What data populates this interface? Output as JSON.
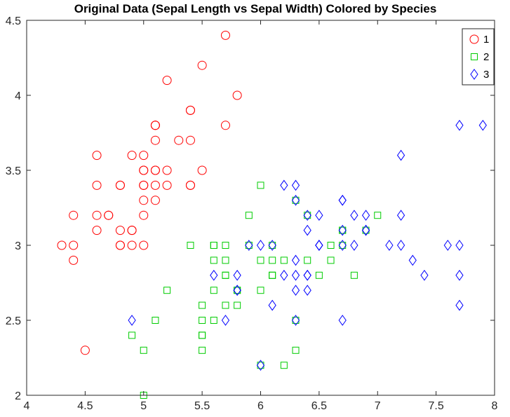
{
  "chart_data": {
    "type": "scatter",
    "title": "Original Data (Sepal Length vs Sepal Width) Colored by Species",
    "xlabel": "",
    "ylabel": "",
    "xlim": [
      4,
      8
    ],
    "ylim": [
      2,
      4.5
    ],
    "xticks": [
      "4",
      "4.5",
      "5",
      "5.5",
      "6",
      "6.5",
      "7",
      "7.5",
      "8"
    ],
    "yticks": [
      "2",
      "2.5",
      "3",
      "3.5",
      "4",
      "4.5"
    ],
    "grid": false,
    "legend_position": "top-right",
    "series": [
      {
        "name": "1",
        "marker": "circle",
        "color": "#ff0000",
        "points": [
          [
            5.1,
            3.5
          ],
          [
            4.9,
            3.0
          ],
          [
            4.7,
            3.2
          ],
          [
            4.6,
            3.1
          ],
          [
            5.0,
            3.6
          ],
          [
            5.4,
            3.9
          ],
          [
            4.6,
            3.4
          ],
          [
            5.0,
            3.4
          ],
          [
            4.4,
            2.9
          ],
          [
            4.9,
            3.1
          ],
          [
            5.4,
            3.7
          ],
          [
            4.8,
            3.4
          ],
          [
            4.8,
            3.0
          ],
          [
            4.3,
            3.0
          ],
          [
            5.8,
            4.0
          ],
          [
            5.7,
            4.4
          ],
          [
            5.4,
            3.9
          ],
          [
            5.1,
            3.5
          ],
          [
            5.7,
            3.8
          ],
          [
            5.1,
            3.8
          ],
          [
            5.4,
            3.4
          ],
          [
            5.1,
            3.7
          ],
          [
            4.6,
            3.6
          ],
          [
            5.1,
            3.3
          ],
          [
            4.8,
            3.4
          ],
          [
            5.0,
            3.0
          ],
          [
            5.0,
            3.4
          ],
          [
            5.2,
            3.5
          ],
          [
            5.2,
            3.4
          ],
          [
            4.7,
            3.2
          ],
          [
            4.8,
            3.1
          ],
          [
            5.4,
            3.4
          ],
          [
            5.2,
            4.1
          ],
          [
            5.5,
            4.2
          ],
          [
            4.9,
            3.1
          ],
          [
            5.0,
            3.2
          ],
          [
            5.5,
            3.5
          ],
          [
            4.9,
            3.6
          ],
          [
            4.4,
            3.0
          ],
          [
            5.1,
            3.4
          ],
          [
            5.0,
            3.5
          ],
          [
            4.5,
            2.3
          ],
          [
            4.4,
            3.2
          ],
          [
            5.0,
            3.5
          ],
          [
            5.1,
            3.8
          ],
          [
            4.8,
            3.0
          ],
          [
            5.1,
            3.8
          ],
          [
            4.6,
            3.2
          ],
          [
            5.3,
            3.7
          ],
          [
            5.0,
            3.3
          ]
        ]
      },
      {
        "name": "2",
        "marker": "square",
        "color": "#00cc00",
        "points": [
          [
            7.0,
            3.2
          ],
          [
            6.4,
            3.2
          ],
          [
            6.9,
            3.1
          ],
          [
            5.5,
            2.3
          ],
          [
            6.5,
            2.8
          ],
          [
            5.7,
            2.8
          ],
          [
            6.3,
            3.3
          ],
          [
            4.9,
            2.4
          ],
          [
            6.6,
            2.9
          ],
          [
            5.2,
            2.7
          ],
          [
            5.0,
            2.0
          ],
          [
            5.9,
            3.0
          ],
          [
            6.0,
            2.2
          ],
          [
            6.1,
            2.9
          ],
          [
            5.6,
            2.9
          ],
          [
            6.7,
            3.1
          ],
          [
            5.6,
            3.0
          ],
          [
            5.8,
            2.7
          ],
          [
            6.2,
            2.2
          ],
          [
            5.6,
            2.5
          ],
          [
            5.9,
            3.2
          ],
          [
            6.1,
            2.8
          ],
          [
            6.3,
            2.5
          ],
          [
            6.1,
            2.8
          ],
          [
            6.4,
            2.9
          ],
          [
            6.6,
            3.0
          ],
          [
            6.8,
            2.8
          ],
          [
            6.7,
            3.0
          ],
          [
            6.0,
            2.9
          ],
          [
            5.7,
            2.6
          ],
          [
            5.5,
            2.4
          ],
          [
            5.5,
            2.4
          ],
          [
            5.8,
            2.7
          ],
          [
            6.0,
            2.7
          ],
          [
            5.4,
            3.0
          ],
          [
            6.0,
            3.4
          ],
          [
            6.7,
            3.1
          ],
          [
            6.3,
            2.3
          ],
          [
            5.6,
            3.0
          ],
          [
            5.5,
            2.5
          ],
          [
            5.5,
            2.6
          ],
          [
            6.1,
            3.0
          ],
          [
            5.8,
            2.6
          ],
          [
            5.0,
            2.3
          ],
          [
            5.6,
            2.7
          ],
          [
            5.7,
            3.0
          ],
          [
            5.7,
            2.9
          ],
          [
            6.2,
            2.9
          ],
          [
            5.1,
            2.5
          ],
          [
            5.7,
            2.8
          ]
        ]
      },
      {
        "name": "3",
        "marker": "diamond",
        "color": "#0000ff",
        "points": [
          [
            6.3,
            3.3
          ],
          [
            5.8,
            2.7
          ],
          [
            7.1,
            3.0
          ],
          [
            6.3,
            2.9
          ],
          [
            6.5,
            3.0
          ],
          [
            7.6,
            3.0
          ],
          [
            4.9,
            2.5
          ],
          [
            7.3,
            2.9
          ],
          [
            6.7,
            2.5
          ],
          [
            7.2,
            3.6
          ],
          [
            6.5,
            3.2
          ],
          [
            6.4,
            2.7
          ],
          [
            6.8,
            3.0
          ],
          [
            5.7,
            2.5
          ],
          [
            5.8,
            2.8
          ],
          [
            6.4,
            3.2
          ],
          [
            6.5,
            3.0
          ],
          [
            7.7,
            3.8
          ],
          [
            7.7,
            2.6
          ],
          [
            6.0,
            2.2
          ],
          [
            6.9,
            3.2
          ],
          [
            5.6,
            2.8
          ],
          [
            7.7,
            2.8
          ],
          [
            6.3,
            2.7
          ],
          [
            6.7,
            3.3
          ],
          [
            7.2,
            3.2
          ],
          [
            6.2,
            2.8
          ],
          [
            6.1,
            3.0
          ],
          [
            6.4,
            2.8
          ],
          [
            7.2,
            3.0
          ],
          [
            7.4,
            2.8
          ],
          [
            7.9,
            3.8
          ],
          [
            6.4,
            2.8
          ],
          [
            6.3,
            2.8
          ],
          [
            6.1,
            2.6
          ],
          [
            7.7,
            3.0
          ],
          [
            6.3,
            3.4
          ],
          [
            6.4,
            3.1
          ],
          [
            6.0,
            3.0
          ],
          [
            6.9,
            3.1
          ],
          [
            6.7,
            3.1
          ],
          [
            6.9,
            3.1
          ],
          [
            5.8,
            2.7
          ],
          [
            6.8,
            3.2
          ],
          [
            6.7,
            3.3
          ],
          [
            6.7,
            3.0
          ],
          [
            6.3,
            2.5
          ],
          [
            6.5,
            3.0
          ],
          [
            6.2,
            3.4
          ],
          [
            5.9,
            3.0
          ]
        ]
      }
    ]
  }
}
